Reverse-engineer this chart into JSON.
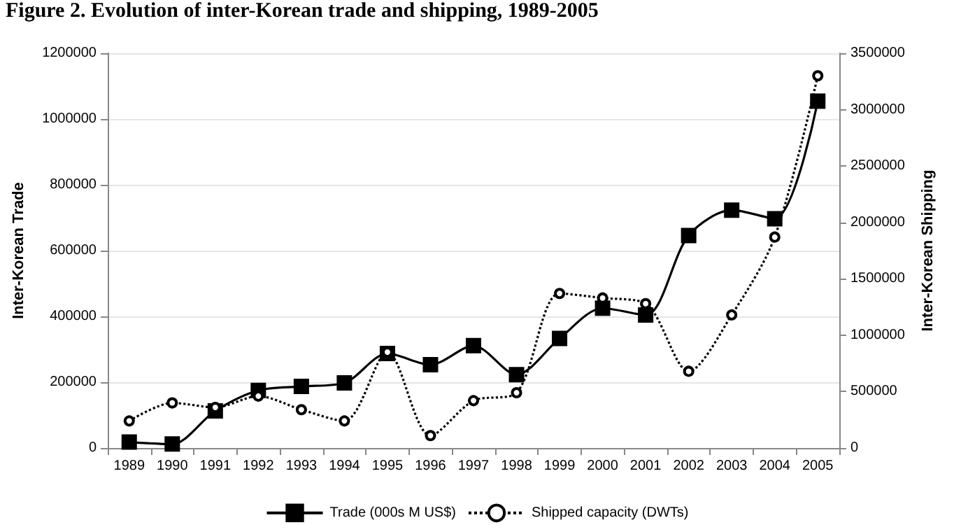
{
  "chart_data": {
    "type": "line",
    "title": "Figure 2. Evolution of inter-Korean trade and shipping, 1989-2005",
    "categories": [
      "1989",
      "1990",
      "1991",
      "1992",
      "1993",
      "1994",
      "1995",
      "1996",
      "1997",
      "1998",
      "1999",
      "2000",
      "2001",
      "2002",
      "2003",
      "2004",
      "2005"
    ],
    "ylabel": "Inter-Korean Trade",
    "y2label": "Inter-Korean Shipping",
    "ylim": [
      0,
      1200000
    ],
    "yticks": [
      0,
      200000,
      400000,
      600000,
      800000,
      1000000,
      1200000
    ],
    "y2lim": [
      0,
      3500000
    ],
    "y2ticks": [
      0,
      500000,
      1000000,
      1500000,
      2000000,
      2500000,
      3000000,
      3500000
    ],
    "grid": "y",
    "legend": "bottom",
    "series": [
      {
        "name": "Trade (000s M US$)",
        "color": "#000000",
        "marker": "square",
        "line_style": "solid",
        "values": [
          18000,
          12000,
          113000,
          175000,
          187000,
          198000,
          287000,
          253000,
          311000,
          223000,
          333000,
          425000,
          404000,
          646000,
          723000,
          697000,
          1054000
        ]
      },
      {
        "name": "Shipped capacity (DWTs)",
        "color": "#000000",
        "marker": "circle",
        "line_style": "dotted",
        "axis": "y2",
        "values": [
          240000,
          400000,
          360000,
          460000,
          340000,
          240000,
          850000,
          110000,
          420000,
          490000,
          1370000,
          1330000,
          1280000,
          680000,
          1180000,
          1870000,
          3300000
        ]
      }
    ]
  }
}
